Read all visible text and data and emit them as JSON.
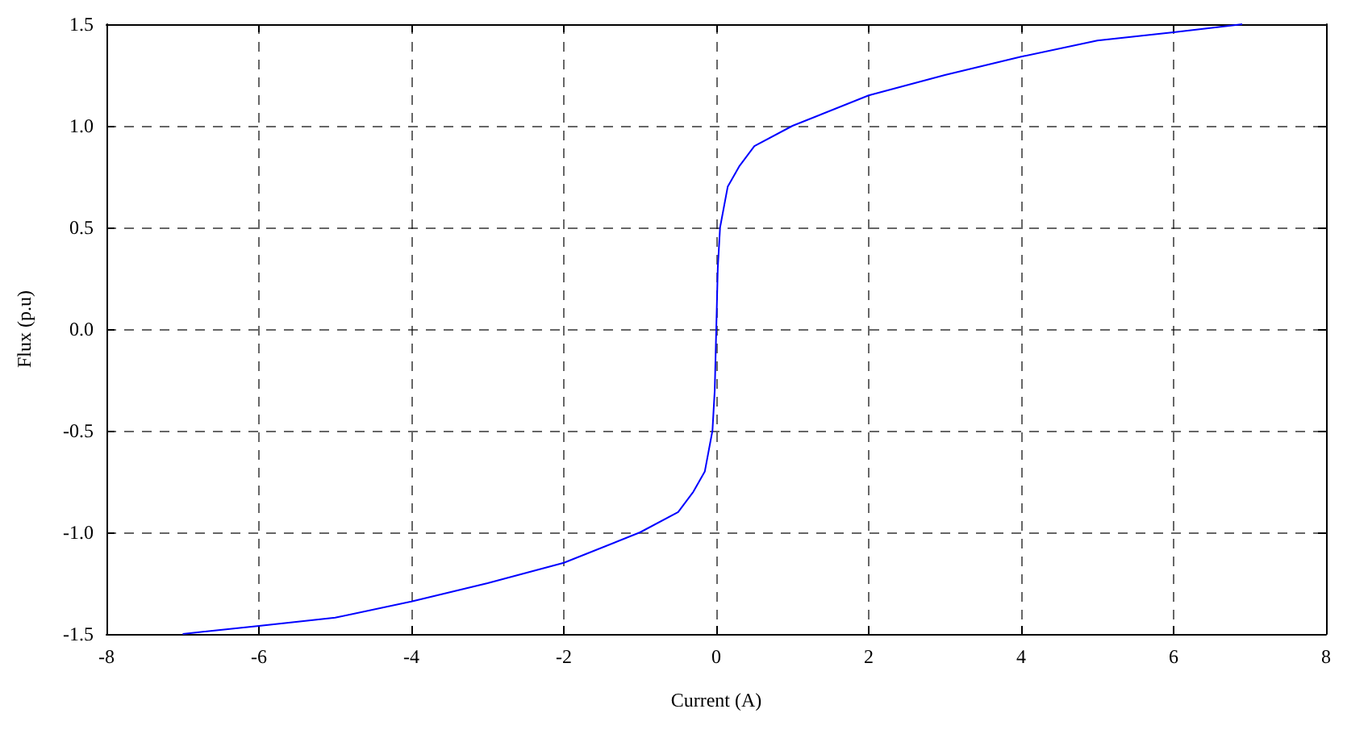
{
  "chart_data": {
    "type": "line",
    "xlabel": "Current (A)",
    "ylabel": "Flux (p.u)",
    "x": [
      -7,
      -6,
      -5,
      -4,
      -3,
      -2,
      -1,
      -0.5,
      -0.3,
      -0.15,
      -0.05,
      -0.02,
      0,
      0.02,
      0.05,
      0.15,
      0.3,
      0.5,
      1,
      2,
      3,
      4,
      5,
      6,
      6.9
    ],
    "series": [
      {
        "color": "#0000ff",
        "values": [
          -1.5,
          -1.46,
          -1.42,
          -1.34,
          -1.25,
          -1.15,
          -1.0,
          -0.9,
          -0.8,
          -0.7,
          -0.5,
          -0.3,
          0,
          0.3,
          0.5,
          0.7,
          0.8,
          0.9,
          1.0,
          1.15,
          1.25,
          1.34,
          1.42,
          1.46,
          1.5
        ]
      }
    ],
    "xlim": [
      -8,
      8
    ],
    "xticks": [
      -8,
      -6,
      -4,
      -2,
      0,
      2,
      4,
      6,
      8
    ],
    "ylim": [
      -1.5,
      1.5
    ],
    "yticks": [
      {
        "value": -1.5,
        "label": "-1.5"
      },
      {
        "value": -1,
        "label": "-1.0"
      },
      {
        "value": -0.5,
        "label": "-0.5"
      },
      {
        "value": 0,
        "label": "0.0"
      },
      {
        "value": 0.5,
        "label": "0.5"
      },
      {
        "value": 1,
        "label": "1.0"
      },
      {
        "value": 1.5,
        "label": "1.5"
      }
    ],
    "grid": true,
    "marker": "none",
    "line_style": "solid"
  }
}
